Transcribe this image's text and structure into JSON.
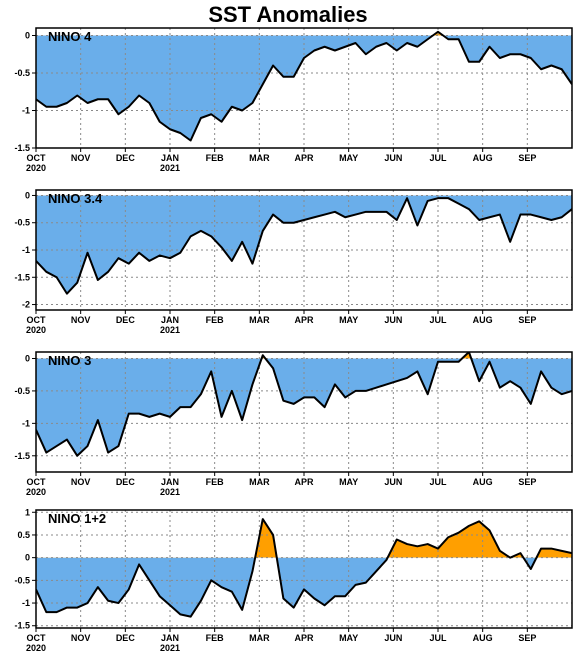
{
  "title": "SST Anomalies",
  "colors": {
    "negative": "#6aaeea",
    "positive": "#ff9f00",
    "line": "#000000",
    "grid": "#8a8a8a"
  },
  "months": [
    {
      "label": "OCT",
      "year": "2020"
    },
    {
      "label": "NOV",
      "year": ""
    },
    {
      "label": "DEC",
      "year": ""
    },
    {
      "label": "JAN",
      "year": "2021"
    },
    {
      "label": "FEB",
      "year": ""
    },
    {
      "label": "MAR",
      "year": ""
    },
    {
      "label": "APR",
      "year": ""
    },
    {
      "label": "MAY",
      "year": ""
    },
    {
      "label": "JUN",
      "year": ""
    },
    {
      "label": "JUL",
      "year": ""
    },
    {
      "label": "AUG",
      "year": ""
    },
    {
      "label": "SEP",
      "year": ""
    }
  ],
  "chart_data": [
    {
      "type": "area",
      "title": "NINO 4",
      "x_unit": "months since start of Oct 2020",
      "ylim": [
        -1.5,
        0.1
      ],
      "yticks": [
        0,
        -0.5,
        -1,
        -1.5
      ],
      "ytick_labels": [
        "0",
        "-0.5",
        "-1",
        "-1.5"
      ],
      "grid": true,
      "values": [
        -0.85,
        -0.95,
        -0.95,
        -0.9,
        -0.8,
        -0.9,
        -0.85,
        -0.85,
        -1.05,
        -0.95,
        -0.8,
        -0.9,
        -1.15,
        -1.25,
        -1.3,
        -1.4,
        -1.1,
        -1.05,
        -1.15,
        -0.95,
        -1.0,
        -0.9,
        -0.65,
        -0.4,
        -0.55,
        -0.55,
        -0.3,
        -0.2,
        -0.15,
        -0.2,
        -0.15,
        -0.1,
        -0.25,
        -0.15,
        -0.1,
        -0.2,
        -0.1,
        -0.15,
        -0.05,
        0.05,
        -0.05,
        -0.05,
        -0.35,
        -0.35,
        -0.15,
        -0.3,
        -0.25,
        -0.25,
        -0.3,
        -0.45,
        -0.4,
        -0.45,
        -0.65
      ]
    },
    {
      "type": "area",
      "title": "NINO 3.4",
      "x_unit": "months since start of Oct 2020",
      "ylim": [
        -2.1,
        0.1
      ],
      "yticks": [
        0,
        -0.5,
        -1,
        -1.5,
        -2
      ],
      "ytick_labels": [
        "0",
        "-0.5",
        "-1",
        "-1.5",
        "-2"
      ],
      "grid": true,
      "values": [
        -1.2,
        -1.4,
        -1.5,
        -1.8,
        -1.6,
        -1.05,
        -1.55,
        -1.4,
        -1.15,
        -1.25,
        -1.05,
        -1.2,
        -1.1,
        -1.15,
        -1.05,
        -0.75,
        -0.65,
        -0.75,
        -0.95,
        -1.2,
        -0.85,
        -1.25,
        -0.65,
        -0.35,
        -0.5,
        -0.5,
        -0.45,
        -0.4,
        -0.35,
        -0.3,
        -0.4,
        -0.35,
        -0.3,
        -0.3,
        -0.3,
        -0.45,
        -0.05,
        -0.55,
        -0.1,
        -0.05,
        -0.05,
        -0.15,
        -0.25,
        -0.45,
        -0.4,
        -0.35,
        -0.85,
        -0.35,
        -0.35,
        -0.4,
        -0.45,
        -0.4,
        -0.25
      ]
    },
    {
      "type": "area",
      "title": "NINO 3",
      "x_unit": "months since start of Oct 2020",
      "ylim": [
        -1.75,
        0.1
      ],
      "yticks": [
        0,
        -0.5,
        -1,
        -1.5
      ],
      "ytick_labels": [
        "0",
        "-0.5",
        "-1",
        "-1.5"
      ],
      "grid": true,
      "values": [
        -1.1,
        -1.45,
        -1.35,
        -1.25,
        -1.5,
        -1.35,
        -0.95,
        -1.45,
        -1.35,
        -0.85,
        -0.85,
        -0.9,
        -0.85,
        -0.9,
        -0.75,
        -0.75,
        -0.55,
        -0.2,
        -0.9,
        -0.5,
        -0.95,
        -0.4,
        0.05,
        -0.15,
        -0.65,
        -0.7,
        -0.6,
        -0.6,
        -0.75,
        -0.4,
        -0.6,
        -0.5,
        -0.5,
        -0.45,
        -0.4,
        -0.35,
        -0.3,
        -0.2,
        -0.55,
        -0.05,
        -0.05,
        -0.05,
        0.1,
        -0.35,
        -0.05,
        -0.45,
        -0.35,
        -0.45,
        -0.7,
        -0.2,
        -0.45,
        -0.55,
        -0.5
      ]
    },
    {
      "type": "area",
      "title": "NINO 1+2",
      "x_unit": "months since start of Oct 2020",
      "ylim": [
        -1.55,
        1.05
      ],
      "yticks": [
        1,
        0.5,
        0,
        -0.5,
        -1,
        -1.5
      ],
      "ytick_labels": [
        "1",
        "0.5",
        "0",
        "-0.5",
        "-1",
        "-1.5"
      ],
      "grid": true,
      "values": [
        -0.7,
        -1.2,
        -1.2,
        -1.1,
        -1.1,
        -1.0,
        -0.65,
        -0.95,
        -1.0,
        -0.7,
        -0.15,
        -0.5,
        -0.85,
        -1.05,
        -1.25,
        -1.3,
        -0.95,
        -0.5,
        -0.65,
        -0.75,
        -1.15,
        -0.3,
        0.85,
        0.5,
        -0.9,
        -1.1,
        -0.7,
        -0.9,
        -1.05,
        -0.85,
        -0.85,
        -0.6,
        -0.55,
        -0.3,
        -0.05,
        0.4,
        0.3,
        0.25,
        0.3,
        0.2,
        0.45,
        0.55,
        0.7,
        0.8,
        0.6,
        0.15,
        0.0,
        0.1,
        -0.25,
        0.2,
        0.2,
        0.15,
        0.1
      ]
    }
  ]
}
